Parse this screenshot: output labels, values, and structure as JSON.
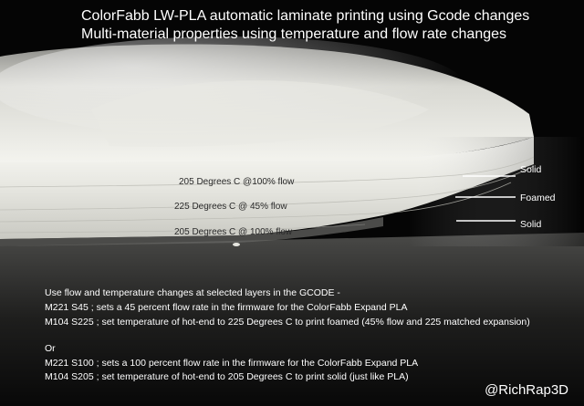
{
  "title": {
    "line1": "ColorFabb LW-PLA automatic laminate printing using Gcode changes",
    "line2": "Multi-material properties using temperature and flow rate changes"
  },
  "layer_labels": {
    "top": "205 Degrees C @100% flow",
    "middle": "225 Degrees C @ 45% flow",
    "bottom": "205 Degrees C @ 100% flow"
  },
  "callouts": {
    "top": "Solid",
    "middle": "Foamed",
    "bottom": "Solid"
  },
  "notes": {
    "intro": "Use flow and temperature changes at selected layers in the GCODE -",
    "foamed_flow": "M221 S45 ; sets a 45 percent flow rate in the firmware for the ColorFabb Expand PLA",
    "foamed_temp": "M104 S225 ; set temperature of hot-end to 225 Degrees C to print foamed (45% flow and 225 matched expansion)",
    "or": "Or",
    "solid_flow": "M221 S100 ; sets a 100 percent flow rate in the firmware for the ColorFabb Expand PLA",
    "solid_temp": "M104 S205 ; set temperature of hot-end to 205 Degrees C to print solid (just like PLA)"
  },
  "credit": "@RichRap3D",
  "colors": {
    "background": "#050505",
    "print_white": "#f2f2ee",
    "text": "#ffffff"
  }
}
